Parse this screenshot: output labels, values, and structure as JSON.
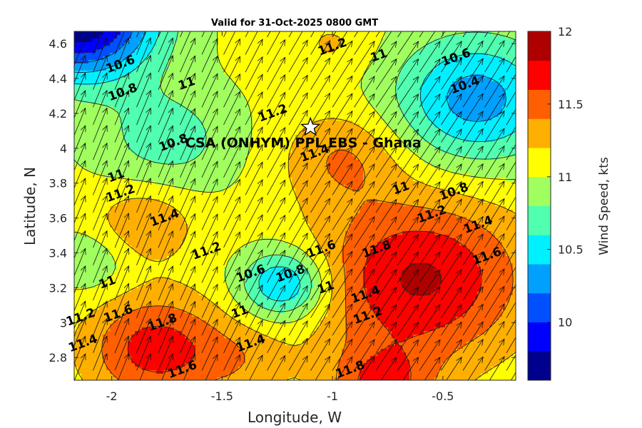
{
  "chart_data": {
    "type": "heatmap",
    "title": "Valid for 31-Oct-2025 0800 GMT",
    "xlabel": "Longitude, W",
    "ylabel": "Latitude, N",
    "colorbar_label": "Wind Speed, kts",
    "xlim": [
      -2.17,
      -0.17
    ],
    "ylim": [
      2.67,
      4.67
    ],
    "xticks": [
      -2,
      -1.5,
      -1,
      -0.5
    ],
    "yticks": [
      2.8,
      3,
      3.2,
      3.4,
      3.6,
      3.8,
      4,
      4.2,
      4.4,
      4.6
    ],
    "clim": [
      9.6,
      12.0
    ],
    "colorbar_ticks": [
      10,
      10.5,
      11,
      11.5,
      12
    ],
    "contour_step": 0.2,
    "site": {
      "label": "CSA (ONHYM) PPL EBS  - Ghana",
      "lon": -1.1,
      "lat": 4.12
    },
    "contour_labels": [
      {
        "text": "10.6",
        "lon": -1.96,
        "lat": 4.48
      },
      {
        "text": "10.8",
        "lon": -1.95,
        "lat": 4.32
      },
      {
        "text": "11",
        "lon": -1.66,
        "lat": 4.37
      },
      {
        "text": "11.2",
        "lon": -1.0,
        "lat": 4.58
      },
      {
        "text": "11",
        "lon": -0.79,
        "lat": 4.53
      },
      {
        "text": "10.6",
        "lon": -0.44,
        "lat": 4.52
      },
      {
        "text": "10.4",
        "lon": -0.4,
        "lat": 4.36
      },
      {
        "text": "11.2",
        "lon": -1.27,
        "lat": 4.2
      },
      {
        "text": "10.8",
        "lon": -1.72,
        "lat": 4.03
      },
      {
        "text": "11.4",
        "lon": -1.08,
        "lat": 3.97
      },
      {
        "text": "11",
        "lon": -1.98,
        "lat": 3.84
      },
      {
        "text": "11.2",
        "lon": -1.96,
        "lat": 3.74
      },
      {
        "text": "11",
        "lon": -0.69,
        "lat": 3.77
      },
      {
        "text": "10.8",
        "lon": -0.45,
        "lat": 3.75
      },
      {
        "text": "11.4",
        "lon": -1.76,
        "lat": 3.6
      },
      {
        "text": "11.2",
        "lon": -0.55,
        "lat": 3.62
      },
      {
        "text": "11.4",
        "lon": -0.34,
        "lat": 3.56
      },
      {
        "text": "11.2",
        "lon": -1.57,
        "lat": 3.41
      },
      {
        "text": "11.6",
        "lon": -1.05,
        "lat": 3.42
      },
      {
        "text": "11.8",
        "lon": -0.8,
        "lat": 3.42
      },
      {
        "text": "11.6",
        "lon": -0.3,
        "lat": 3.38
      },
      {
        "text": "10.6",
        "lon": -1.37,
        "lat": 3.28
      },
      {
        "text": "10.8",
        "lon": -1.19,
        "lat": 3.28
      },
      {
        "text": "11",
        "lon": -2.02,
        "lat": 3.23
      },
      {
        "text": "11",
        "lon": -1.03,
        "lat": 3.2
      },
      {
        "text": "11.4",
        "lon": -0.85,
        "lat": 3.16
      },
      {
        "text": "11.2",
        "lon": -0.84,
        "lat": 3.04
      },
      {
        "text": "11.2",
        "lon": -2.14,
        "lat": 3.03
      },
      {
        "text": "11.6",
        "lon": -1.97,
        "lat": 3.05
      },
      {
        "text": "11.8",
        "lon": -1.77,
        "lat": 3.0
      },
      {
        "text": "11",
        "lon": -1.42,
        "lat": 3.06
      },
      {
        "text": "11.4",
        "lon": -2.13,
        "lat": 2.88
      },
      {
        "text": "11.4",
        "lon": -1.37,
        "lat": 2.88
      },
      {
        "text": "11.6",
        "lon": -1.68,
        "lat": 2.73
      },
      {
        "text": "11.8",
        "lon": -0.92,
        "lat": 2.73
      }
    ]
  },
  "colors": {
    "colormap": [
      "#00008f",
      "#0000ff",
      "#0050ff",
      "#00a0ff",
      "#00f0ff",
      "#50ffaf",
      "#a0ff5f",
      "#ffff00",
      "#ffaf00",
      "#ff5f00",
      "#ff0000",
      "#af0000"
    ]
  }
}
